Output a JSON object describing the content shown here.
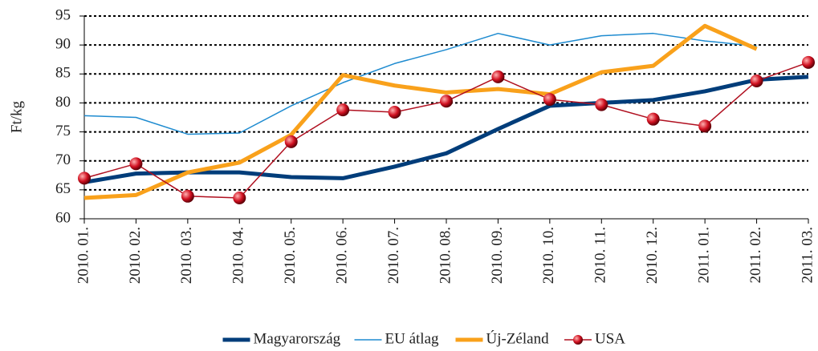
{
  "chart_data": {
    "type": "line",
    "y_label": "Ft/kg",
    "categories": [
      "2010. 01.",
      "2010. 02.",
      "2010. 03.",
      "2010. 04.",
      "2010. 05.",
      "2010. 06.",
      "2010. 07.",
      "2010. 08.",
      "2010. 09.",
      "2010. 10.",
      "2010. 11.",
      "2010. 12.",
      "2011. 01.",
      "2011. 02.",
      "2011. 03."
    ],
    "series": [
      {
        "name": "Magyarország",
        "color": "#003d7a",
        "width": 5,
        "marker": false,
        "values": [
          66.3,
          67.8,
          68,
          68,
          67.2,
          67,
          69,
          71.3,
          75.5,
          79.5,
          80,
          80.5,
          82,
          84,
          84.5
        ]
      },
      {
        "name": "EU átlag",
        "color": "#1e8bd0",
        "width": 1.5,
        "marker": false,
        "values": [
          77.8,
          77.5,
          74.6,
          74.8,
          79.5,
          83.5,
          86.8,
          89.2,
          92,
          90,
          91.6,
          92,
          90.7,
          89.8,
          null
        ]
      },
      {
        "name": "Új-Zéland",
        "color": "#f9a11b",
        "width": 5,
        "marker": false,
        "values": [
          63.6,
          64.1,
          68,
          69.7,
          74.5,
          84.8,
          83,
          81.8,
          82.4,
          81.5,
          85.3,
          86.4,
          93.3,
          89.3,
          null
        ]
      },
      {
        "name": "USA",
        "color": "#b01020",
        "width": 1.5,
        "marker": true,
        "values": [
          67,
          69.5,
          63.9,
          63.6,
          73.3,
          78.8,
          78.4,
          80.3,
          84.5,
          80.6,
          79.7,
          77.2,
          76,
          83.8,
          87
        ]
      }
    ],
    "ylim": [
      60,
      95
    ],
    "yticks": [
      60,
      65,
      70,
      75,
      80,
      85,
      90,
      95
    ],
    "grid": true,
    "legend": "bottom"
  }
}
